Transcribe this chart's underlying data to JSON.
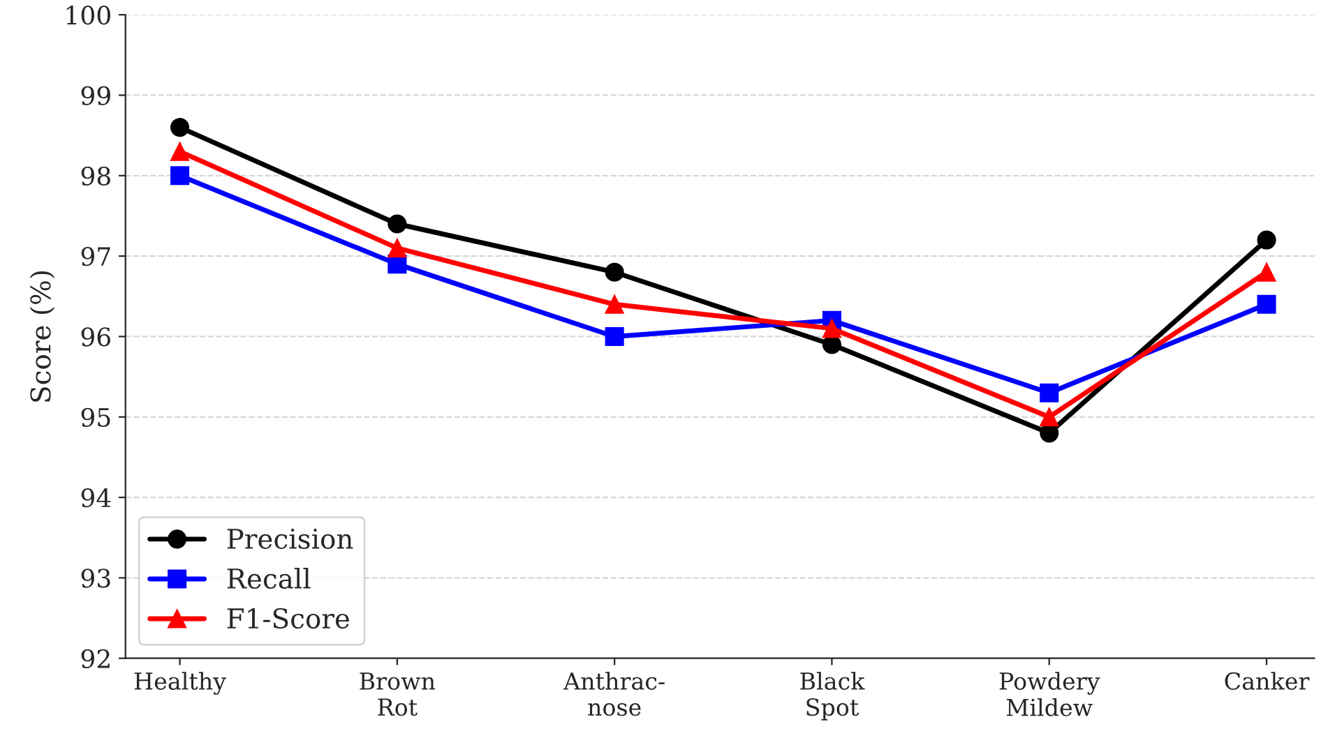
{
  "chart_data": {
    "type": "line",
    "ylabel": "Score (%)",
    "categories": [
      "Healthy",
      "Brown\nRot",
      "Anthrac-\nnose",
      "Black\nSpot",
      "Powdery\nMildew",
      "Canker"
    ],
    "series": [
      {
        "name": "Precision",
        "color": "#000000",
        "marker": "circle",
        "values": [
          98.6,
          97.4,
          96.8,
          95.9,
          94.8,
          97.2
        ]
      },
      {
        "name": "Recall",
        "color": "#0000ff",
        "marker": "square",
        "values": [
          98.0,
          96.9,
          96.0,
          96.2,
          95.3,
          96.4
        ]
      },
      {
        "name": "F1-Score",
        "color": "#ff0000",
        "marker": "triangle",
        "values": [
          98.3,
          97.1,
          96.4,
          96.1,
          95.0,
          96.8
        ]
      }
    ],
    "ylim": [
      92,
      100
    ],
    "yticks": [
      92,
      93,
      94,
      95,
      96,
      97,
      98,
      99,
      100
    ],
    "grid": "y",
    "legend": "bottom left",
    "line_style": "solid"
  }
}
